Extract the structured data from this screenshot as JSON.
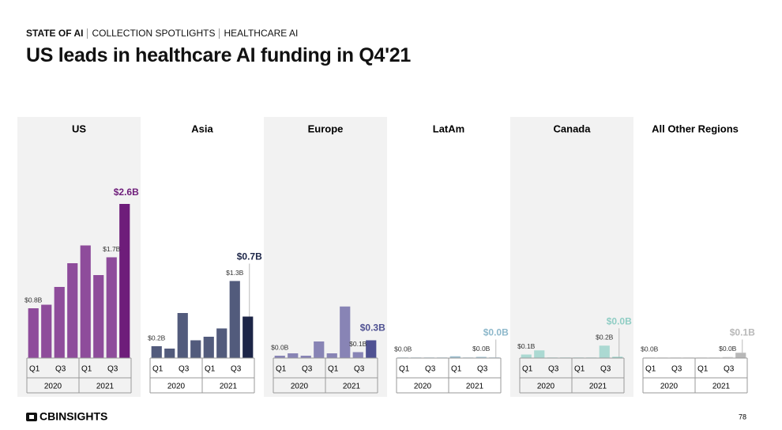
{
  "header": {
    "breadcrumb": [
      "STATE OF AI",
      "COLLECTION SPOTLIGHTS",
      "HEALTHCARE AI"
    ],
    "title": "US leads in healthcare AI funding in Q4'21"
  },
  "footer": {
    "logo": "CBINSIGHTS",
    "page": "78"
  },
  "chart_data": [
    {
      "type": "bar",
      "title": "US",
      "shaded": true,
      "color": "#8e4c9b",
      "highlight_color": "#6e1d7a",
      "categories": [
        "Q1",
        null,
        "Q3",
        null,
        "Q1",
        null,
        "Q3",
        null
      ],
      "groups": [
        "2020",
        "2021"
      ],
      "values": [
        0.84,
        0.9,
        1.2,
        1.6,
        1.9,
        1.4,
        1.7,
        2.6
      ],
      "value_labels": [
        "$0.8B",
        null,
        null,
        null,
        null,
        null,
        "$1.7B",
        "$2.6B"
      ],
      "ylim": [
        0,
        2.6
      ]
    },
    {
      "type": "bar",
      "title": "Asia",
      "shaded": false,
      "color": "#525b7c",
      "highlight_color": "#1c2547",
      "categories": [
        "Q1",
        null,
        "Q3",
        null,
        "Q1",
        null,
        "Q3",
        null
      ],
      "groups": [
        "2020",
        "2021"
      ],
      "values": [
        0.2,
        0.16,
        0.76,
        0.3,
        0.36,
        0.5,
        1.3,
        0.7
      ],
      "value_labels": [
        "$0.2B",
        null,
        null,
        null,
        null,
        null,
        "$1.3B",
        "$0.7B"
      ],
      "ylim": [
        0,
        2.6
      ]
    },
    {
      "type": "bar",
      "title": "Europe",
      "shaded": true,
      "color": "#8884b5",
      "highlight_color": "#4f5192",
      "categories": [
        "Q1",
        null,
        "Q3",
        null,
        "Q1",
        null,
        "Q3",
        null
      ],
      "groups": [
        "2020",
        "2021"
      ],
      "values": [
        0.04,
        0.08,
        0.04,
        0.28,
        0.08,
        0.87,
        0.1,
        0.3
      ],
      "value_labels": [
        "$0.0B",
        null,
        null,
        null,
        null,
        null,
        "$0.1B",
        "$0.3B"
      ],
      "ylim": [
        0,
        2.6
      ]
    },
    {
      "type": "bar",
      "title": "LatAm",
      "shaded": false,
      "color": "#9dbfcf",
      "highlight_color": "#8db8cb",
      "categories": [
        "Q1",
        null,
        "Q3",
        null,
        "Q1",
        null,
        "Q3",
        null
      ],
      "groups": [
        "2020",
        "2021"
      ],
      "values": [
        0.01,
        0.01,
        0.01,
        0.01,
        0.03,
        0.01,
        0.02,
        0.01
      ],
      "value_labels": [
        "$0.0B",
        null,
        null,
        null,
        null,
        null,
        "$0.0B",
        "$0.0B"
      ],
      "ylim": [
        0,
        2.6
      ]
    },
    {
      "type": "bar",
      "title": "Canada",
      "shaded": true,
      "color": "#abd9d2",
      "highlight_color": "#8fcdc4",
      "categories": [
        "Q1",
        null,
        "Q3",
        null,
        "Q1",
        null,
        "Q3",
        null
      ],
      "groups": [
        "2020",
        "2021"
      ],
      "values": [
        0.06,
        0.13,
        0.01,
        0.01,
        0.01,
        0.01,
        0.21,
        0.02
      ],
      "value_labels": [
        "$0.1B",
        null,
        null,
        null,
        null,
        null,
        "$0.2B",
        "$0.0B"
      ],
      "ylim": [
        0,
        2.6
      ]
    },
    {
      "type": "bar",
      "title": "All Other Regions",
      "shaded": false,
      "color": "#dcdcdc",
      "highlight_color": "#b8b8b8",
      "categories": [
        "Q1",
        null,
        "Q3",
        null,
        "Q1",
        null,
        "Q3",
        null
      ],
      "groups": [
        "2020",
        "2021"
      ],
      "values": [
        0.01,
        0.01,
        0.01,
        0.01,
        0.01,
        0.01,
        0.02,
        0.09
      ],
      "value_labels": [
        "$0.0B",
        null,
        null,
        null,
        null,
        null,
        "$0.0B",
        "$0.1B"
      ],
      "ylim": [
        0,
        2.6
      ]
    }
  ]
}
